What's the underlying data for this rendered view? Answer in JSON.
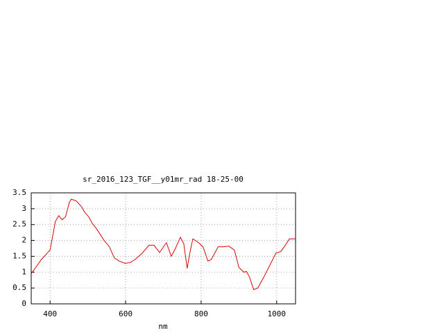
{
  "chart_data": {
    "type": "line",
    "title": "sr_2016_123_TGF__y01mr_rad 18-25-00",
    "x_label": "nm",
    "x": [
      350,
      377,
      400,
      414,
      423,
      432,
      441,
      451,
      456,
      469,
      484,
      491,
      502,
      511,
      524,
      543,
      557,
      570,
      583,
      598,
      612,
      625,
      644,
      662,
      675,
      690,
      708,
      721,
      732,
      745,
      754,
      763,
      770,
      778,
      791,
      805,
      818,
      827,
      845,
      858,
      873,
      888,
      900,
      913,
      920,
      928,
      939,
      950,
      964,
      979,
      998,
      1011,
      1023,
      1034,
      1050
    ],
    "series": [
      {
        "color": "#e00000",
        "values": [
          0.95,
          1.4,
          1.7,
          2.6,
          2.78,
          2.65,
          2.75,
          3.2,
          3.3,
          3.25,
          3.05,
          2.9,
          2.75,
          2.55,
          2.35,
          2.0,
          1.8,
          1.45,
          1.35,
          1.28,
          1.3,
          1.4,
          1.6,
          1.85,
          1.85,
          1.62,
          1.93,
          1.5,
          1.75,
          2.1,
          1.9,
          1.12,
          1.6,
          2.05,
          1.95,
          1.8,
          1.35,
          1.4,
          1.8,
          1.8,
          1.82,
          1.7,
          1.15,
          1.0,
          1.02,
          0.85,
          0.45,
          0.5,
          0.8,
          1.15,
          1.6,
          1.65,
          1.85,
          2.05,
          2.05
        ]
      }
    ],
    "xlim": [
      350,
      1050
    ],
    "xticks": [
      400,
      600,
      800,
      1000
    ],
    "ylim": [
      0,
      3.5
    ],
    "yticks": [
      0,
      0.5,
      1,
      1.5,
      2,
      2.5,
      3,
      3.5
    ],
    "grid": true
  }
}
